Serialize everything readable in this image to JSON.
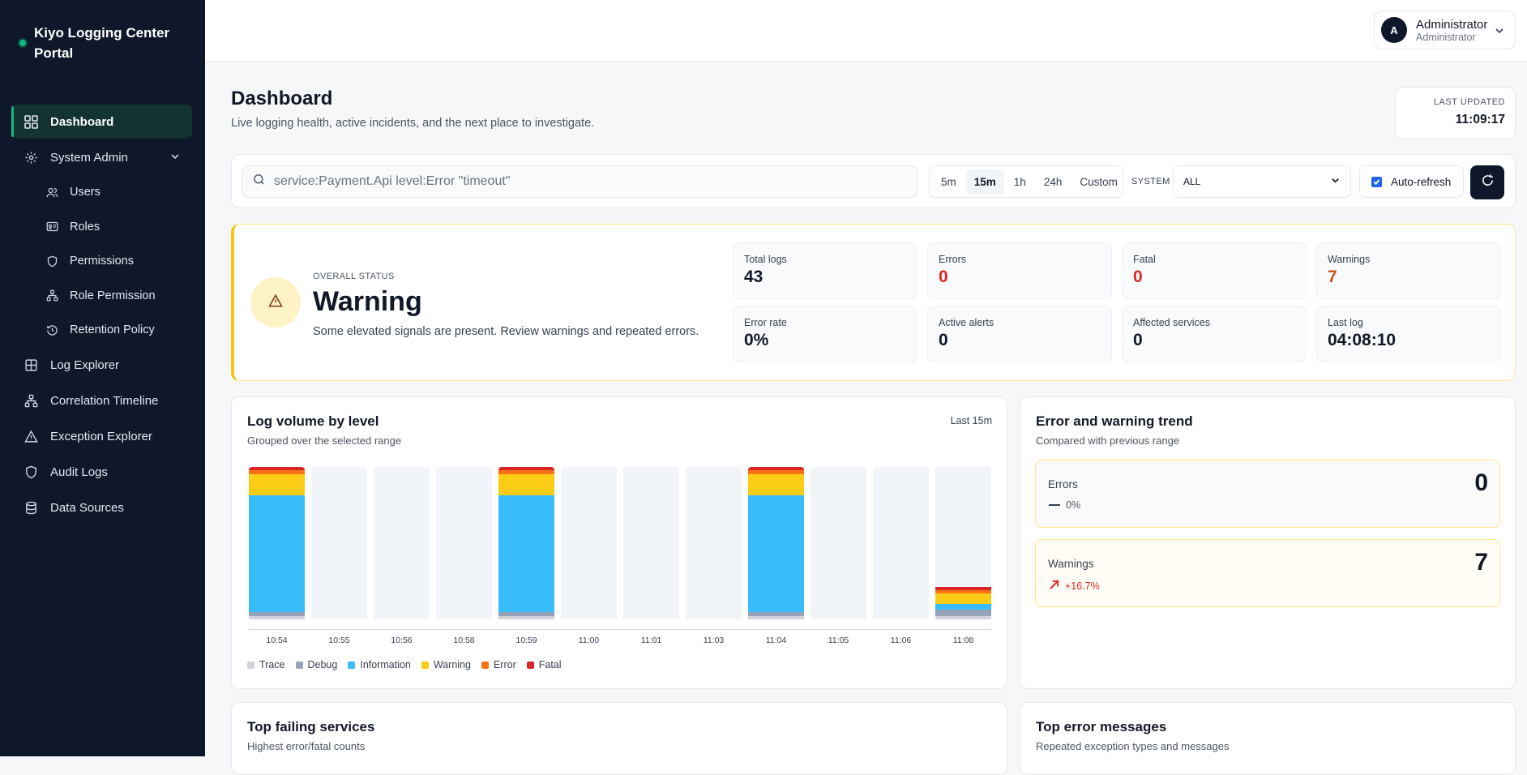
{
  "app": {
    "title": "Kiyo Logging Center Portal"
  },
  "sidebar": {
    "items": [
      {
        "label": "Dashboard"
      },
      {
        "label": "System Admin"
      },
      {
        "label": "Users"
      },
      {
        "label": "Roles"
      },
      {
        "label": "Permissions"
      },
      {
        "label": "Role Permission"
      },
      {
        "label": "Retention Policy"
      },
      {
        "label": "Log Explorer"
      },
      {
        "label": "Correlation Timeline"
      },
      {
        "label": "Exception Explorer"
      },
      {
        "label": "Audit Logs"
      },
      {
        "label": "Data Sources"
      }
    ]
  },
  "user": {
    "initial": "A",
    "name": "Administrator",
    "role": "Administrator"
  },
  "header": {
    "title": "Dashboard",
    "subtitle": "Live logging health, active incidents, and the next place to investigate.",
    "last_updated_label": "LAST UPDATED",
    "last_updated_value": "11:09:17"
  },
  "filters": {
    "search_placeholder": "service:Payment.Api level:Error \"timeout\"",
    "ranges": [
      "5m",
      "15m",
      "1h",
      "24h",
      "Custom"
    ],
    "active_range": "15m",
    "system_label": "SYSTEM",
    "system_value": "ALL",
    "auto_refresh_label": "Auto-refresh",
    "auto_refresh_checked": true
  },
  "status": {
    "label": "OVERALL STATUS",
    "value": "Warning",
    "description": "Some elevated signals are present. Review warnings and repeated errors.",
    "kpis": [
      {
        "label": "Total logs",
        "value": "43"
      },
      {
        "label": "Errors",
        "value": "0"
      },
      {
        "label": "Fatal",
        "value": "0"
      },
      {
        "label": "Warnings",
        "value": "7"
      },
      {
        "label": "Error rate",
        "value": "0%"
      },
      {
        "label": "Active alerts",
        "value": "0"
      },
      {
        "label": "Affected services",
        "value": "0"
      },
      {
        "label": "Last log",
        "value": "04:08:10"
      }
    ]
  },
  "volume": {
    "title": "Log volume by level",
    "subtitle": "Grouped over the selected range",
    "range": "Last 15m",
    "legend": [
      "Trace",
      "Debug",
      "Information",
      "Warning",
      "Error",
      "Fatal"
    ],
    "colors": {
      "Trace": "#d1d5db",
      "Debug": "#94a3b8",
      "Information": "#38bdf8",
      "Warning": "#facc15",
      "Error": "#f97316",
      "Fatal": "#dc2626"
    }
  },
  "chart_data": {
    "type": "bar",
    "stacked": true,
    "categories": [
      "10:54",
      "10:55",
      "10:56",
      "10:58",
      "10:59",
      "11:00",
      "11:01",
      "11:03",
      "11:04",
      "11:05",
      "11:06",
      "11:08"
    ],
    "series": [
      {
        "name": "Trace",
        "values": [
          0.3,
          0,
          0,
          0,
          0.3,
          0,
          0,
          0,
          0.3,
          0,
          0,
          0.3
        ]
      },
      {
        "name": "Debug",
        "values": [
          0.3,
          0,
          0,
          0,
          0.3,
          0,
          0,
          0,
          0.3,
          0,
          0,
          0.5
        ]
      },
      {
        "name": "Information",
        "values": [
          10,
          0,
          0,
          0,
          10,
          0,
          0,
          0,
          10,
          0,
          0,
          0.5
        ]
      },
      {
        "name": "Warning",
        "values": [
          1.8,
          0,
          0,
          0,
          1.8,
          0,
          0,
          0,
          1.8,
          0,
          0,
          0.9
        ]
      },
      {
        "name": "Error",
        "values": [
          0.3,
          0,
          0,
          0,
          0.3,
          0,
          0,
          0,
          0.3,
          0,
          0,
          0.3
        ]
      },
      {
        "name": "Fatal",
        "values": [
          0.3,
          0,
          0,
          0,
          0.3,
          0,
          0,
          0,
          0.3,
          0,
          0,
          0.3
        ]
      }
    ],
    "ylim": [
      0,
      13
    ]
  },
  "trend": {
    "title": "Error and warning trend",
    "subtitle": "Compared with previous range",
    "errors": {
      "label": "Errors",
      "value": "0",
      "delta": "0%"
    },
    "warnings": {
      "label": "Warnings",
      "value": "7",
      "delta": "+16.7%"
    }
  },
  "top_services": {
    "title": "Top failing services",
    "subtitle": "Highest error/fatal counts"
  },
  "top_errors": {
    "title": "Top error messages",
    "subtitle": "Repeated exception types and messages"
  }
}
